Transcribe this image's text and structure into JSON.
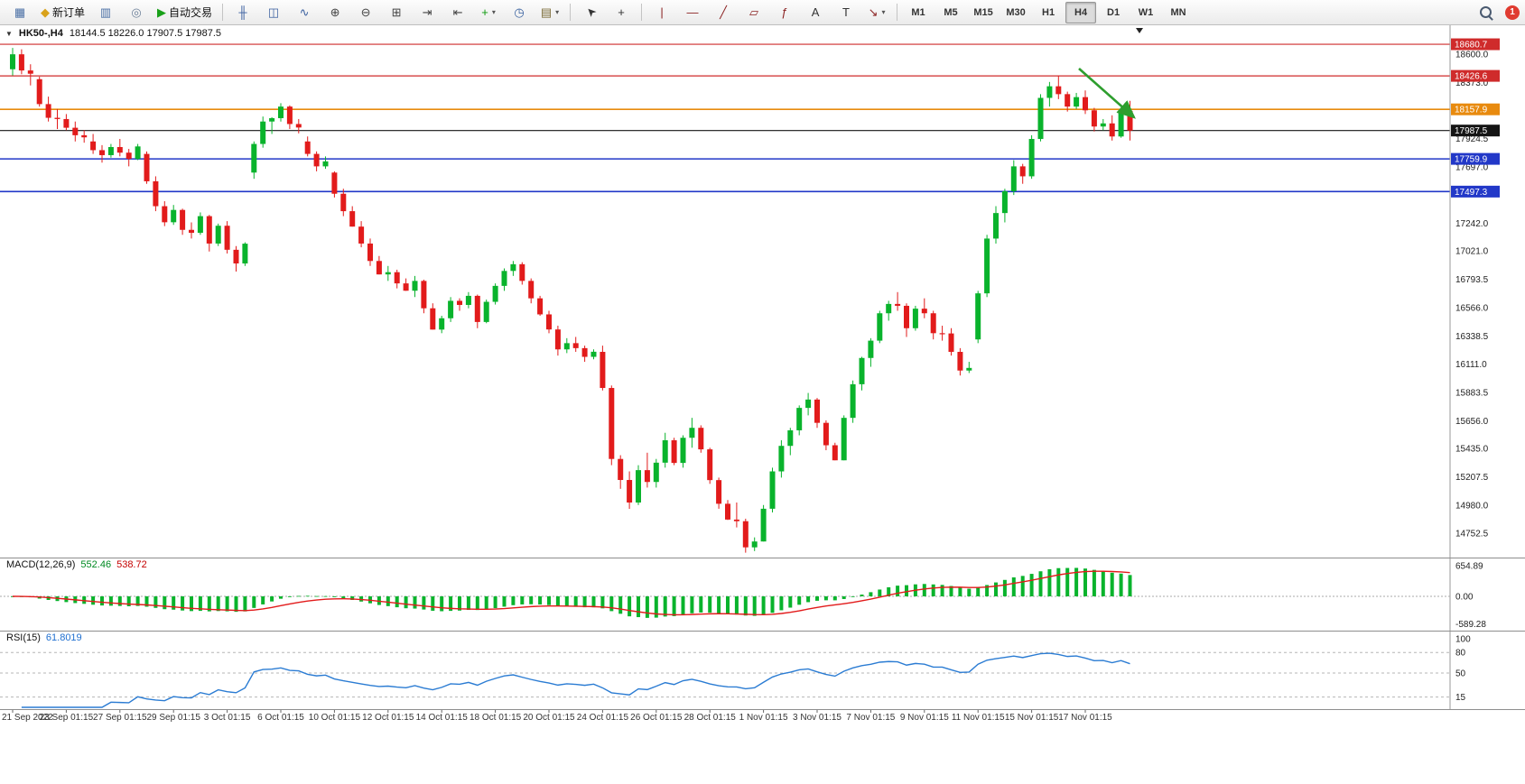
{
  "toolbar": {
    "badge": "1",
    "groups": [
      {
        "name": "file-group",
        "buttons": [
          {
            "name": "new-chart-button",
            "glyph": "▦",
            "color": "#4a6fa5",
            "icon": "new-chart-icon"
          },
          {
            "name": "new-order-button",
            "glyph": "◆",
            "color": "#d9a21b",
            "label": "新订单",
            "icon": "new-order-icon"
          },
          {
            "name": "charts-list-button",
            "glyph": "▥",
            "color": "#4a6fa5",
            "icon": "charts-icon"
          },
          {
            "name": "profiles-button",
            "glyph": "◎",
            "color": "#6b7f98",
            "icon": "profiles-icon"
          },
          {
            "name": "autotrading-button",
            "glyph": "▶",
            "color": "#18a018",
            "label": "自动交易",
            "icon": "autotrading-icon"
          }
        ]
      },
      {
        "name": "chart-view-group",
        "buttons": [
          {
            "name": "bar-chart-button",
            "glyph": "╫",
            "color": "#3a5f9f",
            "icon": "bar-chart-icon"
          },
          {
            "name": "candlestick-button",
            "glyph": "◫",
            "color": "#3a5f9f",
            "icon": "candlestick-icon"
          },
          {
            "name": "line-chart-button",
            "glyph": "∿",
            "color": "#3a5f9f",
            "icon": "line-chart-icon"
          },
          {
            "name": "zoom-in-button",
            "glyph": "⊕",
            "color": "#444",
            "icon": "zoom-in-icon"
          },
          {
            "name": "zoom-out-button",
            "glyph": "⊖",
            "color": "#444",
            "icon": "zoom-out-icon"
          },
          {
            "name": "tile-windows-button",
            "glyph": "⊞",
            "color": "#444",
            "icon": "tile-windows-icon"
          },
          {
            "name": "auto-scroll-button",
            "glyph": "⇥",
            "color": "#444",
            "icon": "auto-scroll-icon"
          },
          {
            "name": "chart-shift-button",
            "glyph": "⇤",
            "color": "#444",
            "icon": "chart-shift-icon"
          },
          {
            "name": "add-indicator-button",
            "glyph": "+",
            "color": "#0d9a0d",
            "caret": true,
            "icon": "add-indicator-icon"
          },
          {
            "name": "period-button",
            "glyph": "◷",
            "color": "#365f9e",
            "icon": "clock-icon"
          },
          {
            "name": "templates-button",
            "glyph": "▤",
            "color": "#7a6a36",
            "caret": true,
            "icon": "templates-icon"
          }
        ]
      },
      {
        "name": "pointer-group",
        "buttons": [
          {
            "name": "cursor-button",
            "glyph": "➤",
            "color": "#333",
            "cls": "rot",
            "icon": "cursor-icon"
          },
          {
            "name": "crosshair-button",
            "glyph": "+",
            "color": "#333",
            "icon": "crosshair-icon"
          }
        ]
      },
      {
        "name": "draw-objects-group",
        "buttons": [
          {
            "name": "vertical-line-button",
            "glyph": "|",
            "color": "#8b2222",
            "icon": "vertical-line-icon"
          },
          {
            "name": "horizontal-line-button",
            "glyph": "—",
            "color": "#8b2222",
            "icon": "horizontal-line-icon"
          },
          {
            "name": "trendline-button",
            "glyph": "╱",
            "color": "#8b2222",
            "icon": "trendline-icon"
          },
          {
            "name": "channel-button",
            "glyph": "▱",
            "color": "#8b2222",
            "icon": "channel-icon"
          },
          {
            "name": "fibonacci-button",
            "glyph": "ƒ",
            "color": "#8b2222",
            "icon": "fibonacci-icon"
          },
          {
            "name": "text-button",
            "glyph": "A",
            "color": "#333",
            "icon": "text-icon"
          },
          {
            "name": "text-label-button",
            "glyph": "T",
            "color": "#333",
            "icon": "text-label-icon"
          },
          {
            "name": "arrows-button",
            "glyph": "↘",
            "color": "#8b2222",
            "caret": true,
            "icon": "arrows-icon"
          }
        ]
      }
    ],
    "timeframes": {
      "options": [
        "M1",
        "M5",
        "M15",
        "M30",
        "H1",
        "H4",
        "D1",
        "W1",
        "MN"
      ],
      "active": "H4"
    }
  },
  "chart": {
    "collapse_glyph": "▼",
    "symbol_period": "HK50-,H4",
    "ohlc": "18144.5 18226.0 17907.5 17987.5"
  },
  "indicators": {
    "macd": {
      "name": "MACD(12,26,9)",
      "main": "552.46",
      "signal": "538.72",
      "axis": [
        "654.89",
        "0.00",
        "-589.28"
      ],
      "axis_values": [
        654.89,
        0,
        -589.28
      ],
      "hist_color": "#09b32c",
      "signal_color": "#e21b1b"
    },
    "rsi": {
      "name": "RSI(15)",
      "value": "61.8019",
      "axis": [
        "100",
        "80",
        "50",
        "15"
      ],
      "axis_values": [
        100,
        80,
        50,
        15
      ],
      "level_values": [
        80,
        50,
        15
      ],
      "line_color": "#2b7cd3"
    }
  },
  "chart_data": {
    "type": "candlestick",
    "symbol": "HK50-",
    "period": "H4",
    "current_price": 17987.5,
    "up_color": "#09b32c",
    "down_color": "#e21b1b",
    "scale": {
      "top_price": 18710,
      "bottom_price": 14558
    },
    "price_axis_labels": [
      "18600.0",
      "18373.0",
      "17924.5",
      "17697.0",
      "17242.0",
      "17021.0",
      "16793.5",
      "16566.0",
      "16338.5",
      "16111.0",
      "15883.5",
      "15656.0",
      "15435.0",
      "15207.5",
      "14980.0",
      "14752.5"
    ],
    "levels": [
      {
        "label": "18680.7",
        "price": 18680.7,
        "color": "#cf2b2b",
        "width": 1.2
      },
      {
        "label": "18426.6",
        "price": 18426.6,
        "color": "#cf2b2b",
        "width": 1.2
      },
      {
        "label": "18157.9",
        "price": 18157.9,
        "color": "#e88a0e",
        "width": 1.6
      },
      {
        "label": "17987.5",
        "price": 17987.5,
        "color": "#141414",
        "width": 1.1
      },
      {
        "label": "17759.9",
        "price": 17759.9,
        "color": "#2238c8",
        "width": 1.6
      },
      {
        "label": "17497.3",
        "price": 17497.3,
        "color": "#2238c8",
        "width": 1.6
      }
    ],
    "time_labels": [
      {
        "i": 0,
        "label": "21 Sep 2022"
      },
      {
        "i": 6,
        "label": "23 Sep 01:15"
      },
      {
        "i": 12,
        "label": "27 Sep 01:15"
      },
      {
        "i": 18,
        "label": "29 Sep 01:15"
      },
      {
        "i": 24,
        "label": "3 Oct 01:15"
      },
      {
        "i": 30,
        "label": "6 Oct 01:15"
      },
      {
        "i": 36,
        "label": "10 Oct 01:15"
      },
      {
        "i": 42,
        "label": "12 Oct 01:15"
      },
      {
        "i": 48,
        "label": "14 Oct 01:15"
      },
      {
        "i": 54,
        "label": "18 Oct 01:15"
      },
      {
        "i": 60,
        "label": "20 Oct 01:15"
      },
      {
        "i": 66,
        "label": "24 Oct 01:15"
      },
      {
        "i": 72,
        "label": "26 Oct 01:15"
      },
      {
        "i": 78,
        "label": "28 Oct 01:15"
      },
      {
        "i": 84,
        "label": "1 Nov 01:15"
      },
      {
        "i": 90,
        "label": "3 Nov 01:15"
      },
      {
        "i": 96,
        "label": "7 Nov 01:15"
      },
      {
        "i": 102,
        "label": "9 Nov 01:15"
      },
      {
        "i": 108,
        "label": "11 Nov 01:15"
      },
      {
        "i": 114,
        "label": "15 Nov 01:15"
      },
      {
        "i": 120,
        "label": "17 Nov 01:15"
      }
    ],
    "annotation": {
      "type": "arrow-down-right",
      "color": "#2e9e2e"
    },
    "candles": [
      [
        18480,
        18651,
        18430,
        18600
      ],
      [
        18600,
        18640,
        18440,
        18470
      ],
      [
        18470,
        18520,
        18350,
        18444
      ],
      [
        18400,
        18420,
        18180,
        18200
      ],
      [
        18200,
        18260,
        18060,
        18090
      ],
      [
        18090,
        18160,
        18000,
        18080
      ],
      [
        18080,
        18120,
        17990,
        18010
      ],
      [
        18010,
        18060,
        17900,
        17950
      ],
      [
        17950,
        17990,
        17890,
        17933
      ],
      [
        17900,
        17960,
        17800,
        17830
      ],
      [
        17830,
        17870,
        17730,
        17790
      ],
      [
        17790,
        17880,
        17770,
        17855
      ],
      [
        17855,
        17920,
        17780,
        17810
      ],
      [
        17810,
        17840,
        17700,
        17760
      ],
      [
        17760,
        17880,
        17750,
        17860
      ],
      [
        17800,
        17820,
        17560,
        17580
      ],
      [
        17580,
        17620,
        17340,
        17380
      ],
      [
        17380,
        17420,
        17220,
        17251
      ],
      [
        17251,
        17390,
        17230,
        17350
      ],
      [
        17350,
        17360,
        17150,
        17190
      ],
      [
        17190,
        17250,
        17120,
        17166
      ],
      [
        17166,
        17330,
        17150,
        17300
      ],
      [
        17300,
        17310,
        17016,
        17080
      ],
      [
        17080,
        17240,
        17060,
        17223
      ],
      [
        17223,
        17260,
        17000,
        17030
      ],
      [
        17030,
        17060,
        16855,
        16920
      ],
      [
        16920,
        17090,
        16900,
        17079
      ],
      [
        17650,
        17900,
        17600,
        17880
      ],
      [
        17880,
        18100,
        17850,
        18060
      ],
      [
        18060,
        18095,
        17960,
        18087
      ],
      [
        18087,
        18207,
        18060,
        18180
      ],
      [
        18180,
        18190,
        18000,
        18040
      ],
      [
        18040,
        18080,
        17965,
        18012
      ],
      [
        17900,
        17940,
        17780,
        17800
      ],
      [
        17800,
        17820,
        17660,
        17700
      ],
      [
        17700,
        17780,
        17680,
        17740
      ],
      [
        17650,
        17660,
        17450,
        17480
      ],
      [
        17480,
        17520,
        17300,
        17340
      ],
      [
        17340,
        17380,
        17216,
        17216
      ],
      [
        17216,
        17260,
        17050,
        17080
      ],
      [
        17080,
        17120,
        16900,
        16940
      ],
      [
        16940,
        16980,
        16832,
        16832
      ],
      [
        16832,
        16900,
        16780,
        16850
      ],
      [
        16850,
        16870,
        16720,
        16760
      ],
      [
        16760,
        16800,
        16700,
        16701
      ],
      [
        16701,
        16820,
        16650,
        16780
      ],
      [
        16780,
        16790,
        16520,
        16560
      ],
      [
        16560,
        16600,
        16389,
        16389
      ],
      [
        16389,
        16500,
        16360,
        16480
      ],
      [
        16480,
        16650,
        16450,
        16620
      ],
      [
        16620,
        16640,
        16540,
        16587
      ],
      [
        16587,
        16690,
        16560,
        16660
      ],
      [
        16660,
        16670,
        16400,
        16450
      ],
      [
        16450,
        16630,
        16440,
        16612
      ],
      [
        16612,
        16760,
        16590,
        16740
      ],
      [
        16740,
        16880,
        16700,
        16860
      ],
      [
        16860,
        16940,
        16820,
        16914
      ],
      [
        16914,
        16930,
        16750,
        16780
      ],
      [
        16780,
        16800,
        16600,
        16640
      ],
      [
        16640,
        16660,
        16500,
        16511
      ],
      [
        16511,
        16540,
        16360,
        16390
      ],
      [
        16390,
        16420,
        16180,
        16230
      ],
      [
        16230,
        16320,
        16200,
        16280
      ],
      [
        16280,
        16330,
        16210,
        16240
      ],
      [
        16240,
        16260,
        16130,
        16170
      ],
      [
        16170,
        16230,
        16150,
        16211
      ],
      [
        16210,
        16260,
        15900,
        15920
      ],
      [
        15920,
        15940,
        15300,
        15350
      ],
      [
        15350,
        15380,
        15110,
        15181
      ],
      [
        15181,
        15250,
        14949,
        15000
      ],
      [
        15000,
        15300,
        14980,
        15260
      ],
      [
        15260,
        15400,
        15120,
        15165
      ],
      [
        15165,
        15350,
        15120,
        15320
      ],
      [
        15320,
        15560,
        15280,
        15500
      ],
      [
        15500,
        15520,
        15300,
        15318
      ],
      [
        15318,
        15540,
        15280,
        15520
      ],
      [
        15520,
        15680,
        15440,
        15600
      ],
      [
        15600,
        15620,
        15400,
        15427
      ],
      [
        15427,
        15440,
        15150,
        15180
      ],
      [
        15180,
        15200,
        14950,
        14990
      ],
      [
        14990,
        15020,
        14860,
        14863
      ],
      [
        14863,
        15000,
        14800,
        14850
      ],
      [
        14850,
        14870,
        14597,
        14640
      ],
      [
        14640,
        14720,
        14610,
        14687
      ],
      [
        14687,
        14980,
        14687,
        14950
      ],
      [
        14950,
        15280,
        14920,
        15250
      ],
      [
        15250,
        15500,
        15200,
        15455
      ],
      [
        15455,
        15600,
        15380,
        15580
      ],
      [
        15580,
        15780,
        15540,
        15760
      ],
      [
        15760,
        15880,
        15700,
        15827
      ],
      [
        15827,
        15840,
        15600,
        15640
      ],
      [
        15640,
        15660,
        15420,
        15460
      ],
      [
        15460,
        15480,
        15339,
        15339
      ],
      [
        15339,
        15700,
        15339,
        15680
      ],
      [
        15680,
        15980,
        15640,
        15950
      ],
      [
        15950,
        16170,
        15900,
        16161
      ],
      [
        16161,
        16320,
        16090,
        16300
      ],
      [
        16300,
        16540,
        16280,
        16520
      ],
      [
        16520,
        16620,
        16460,
        16595
      ],
      [
        16595,
        16690,
        16540,
        16580
      ],
      [
        16580,
        16600,
        16330,
        16400
      ],
      [
        16400,
        16580,
        16380,
        16557
      ],
      [
        16557,
        16640,
        16480,
        16520
      ],
      [
        16520,
        16540,
        16310,
        16360
      ],
      [
        16360,
        16420,
        16300,
        16358
      ],
      [
        16358,
        16400,
        16180,
        16210
      ],
      [
        16210,
        16240,
        16020,
        16060
      ],
      [
        16060,
        16130,
        16040,
        16081
      ],
      [
        16310,
        16700,
        16280,
        16680
      ],
      [
        16680,
        17150,
        16650,
        17120
      ],
      [
        17120,
        17380,
        17080,
        17325
      ],
      [
        17325,
        17520,
        17250,
        17500
      ],
      [
        17500,
        17750,
        17470,
        17700
      ],
      [
        17700,
        17720,
        17560,
        17620
      ],
      [
        17620,
        17950,
        17600,
        17920
      ],
      [
        17920,
        18280,
        17900,
        18250
      ],
      [
        18250,
        18378,
        18180,
        18343
      ],
      [
        18343,
        18426,
        18240,
        18280
      ],
      [
        18280,
        18300,
        18140,
        18180
      ],
      [
        18180,
        18290,
        18160,
        18256
      ],
      [
        18256,
        18310,
        18120,
        18150
      ],
      [
        18150,
        18170,
        17980,
        18020
      ],
      [
        18020,
        18080,
        17990,
        18045
      ],
      [
        18045,
        18110,
        17907,
        17940
      ],
      [
        17940,
        18150,
        17930,
        18144
      ],
      [
        18144.5,
        18226,
        17907.5,
        17987.5
      ]
    ]
  }
}
